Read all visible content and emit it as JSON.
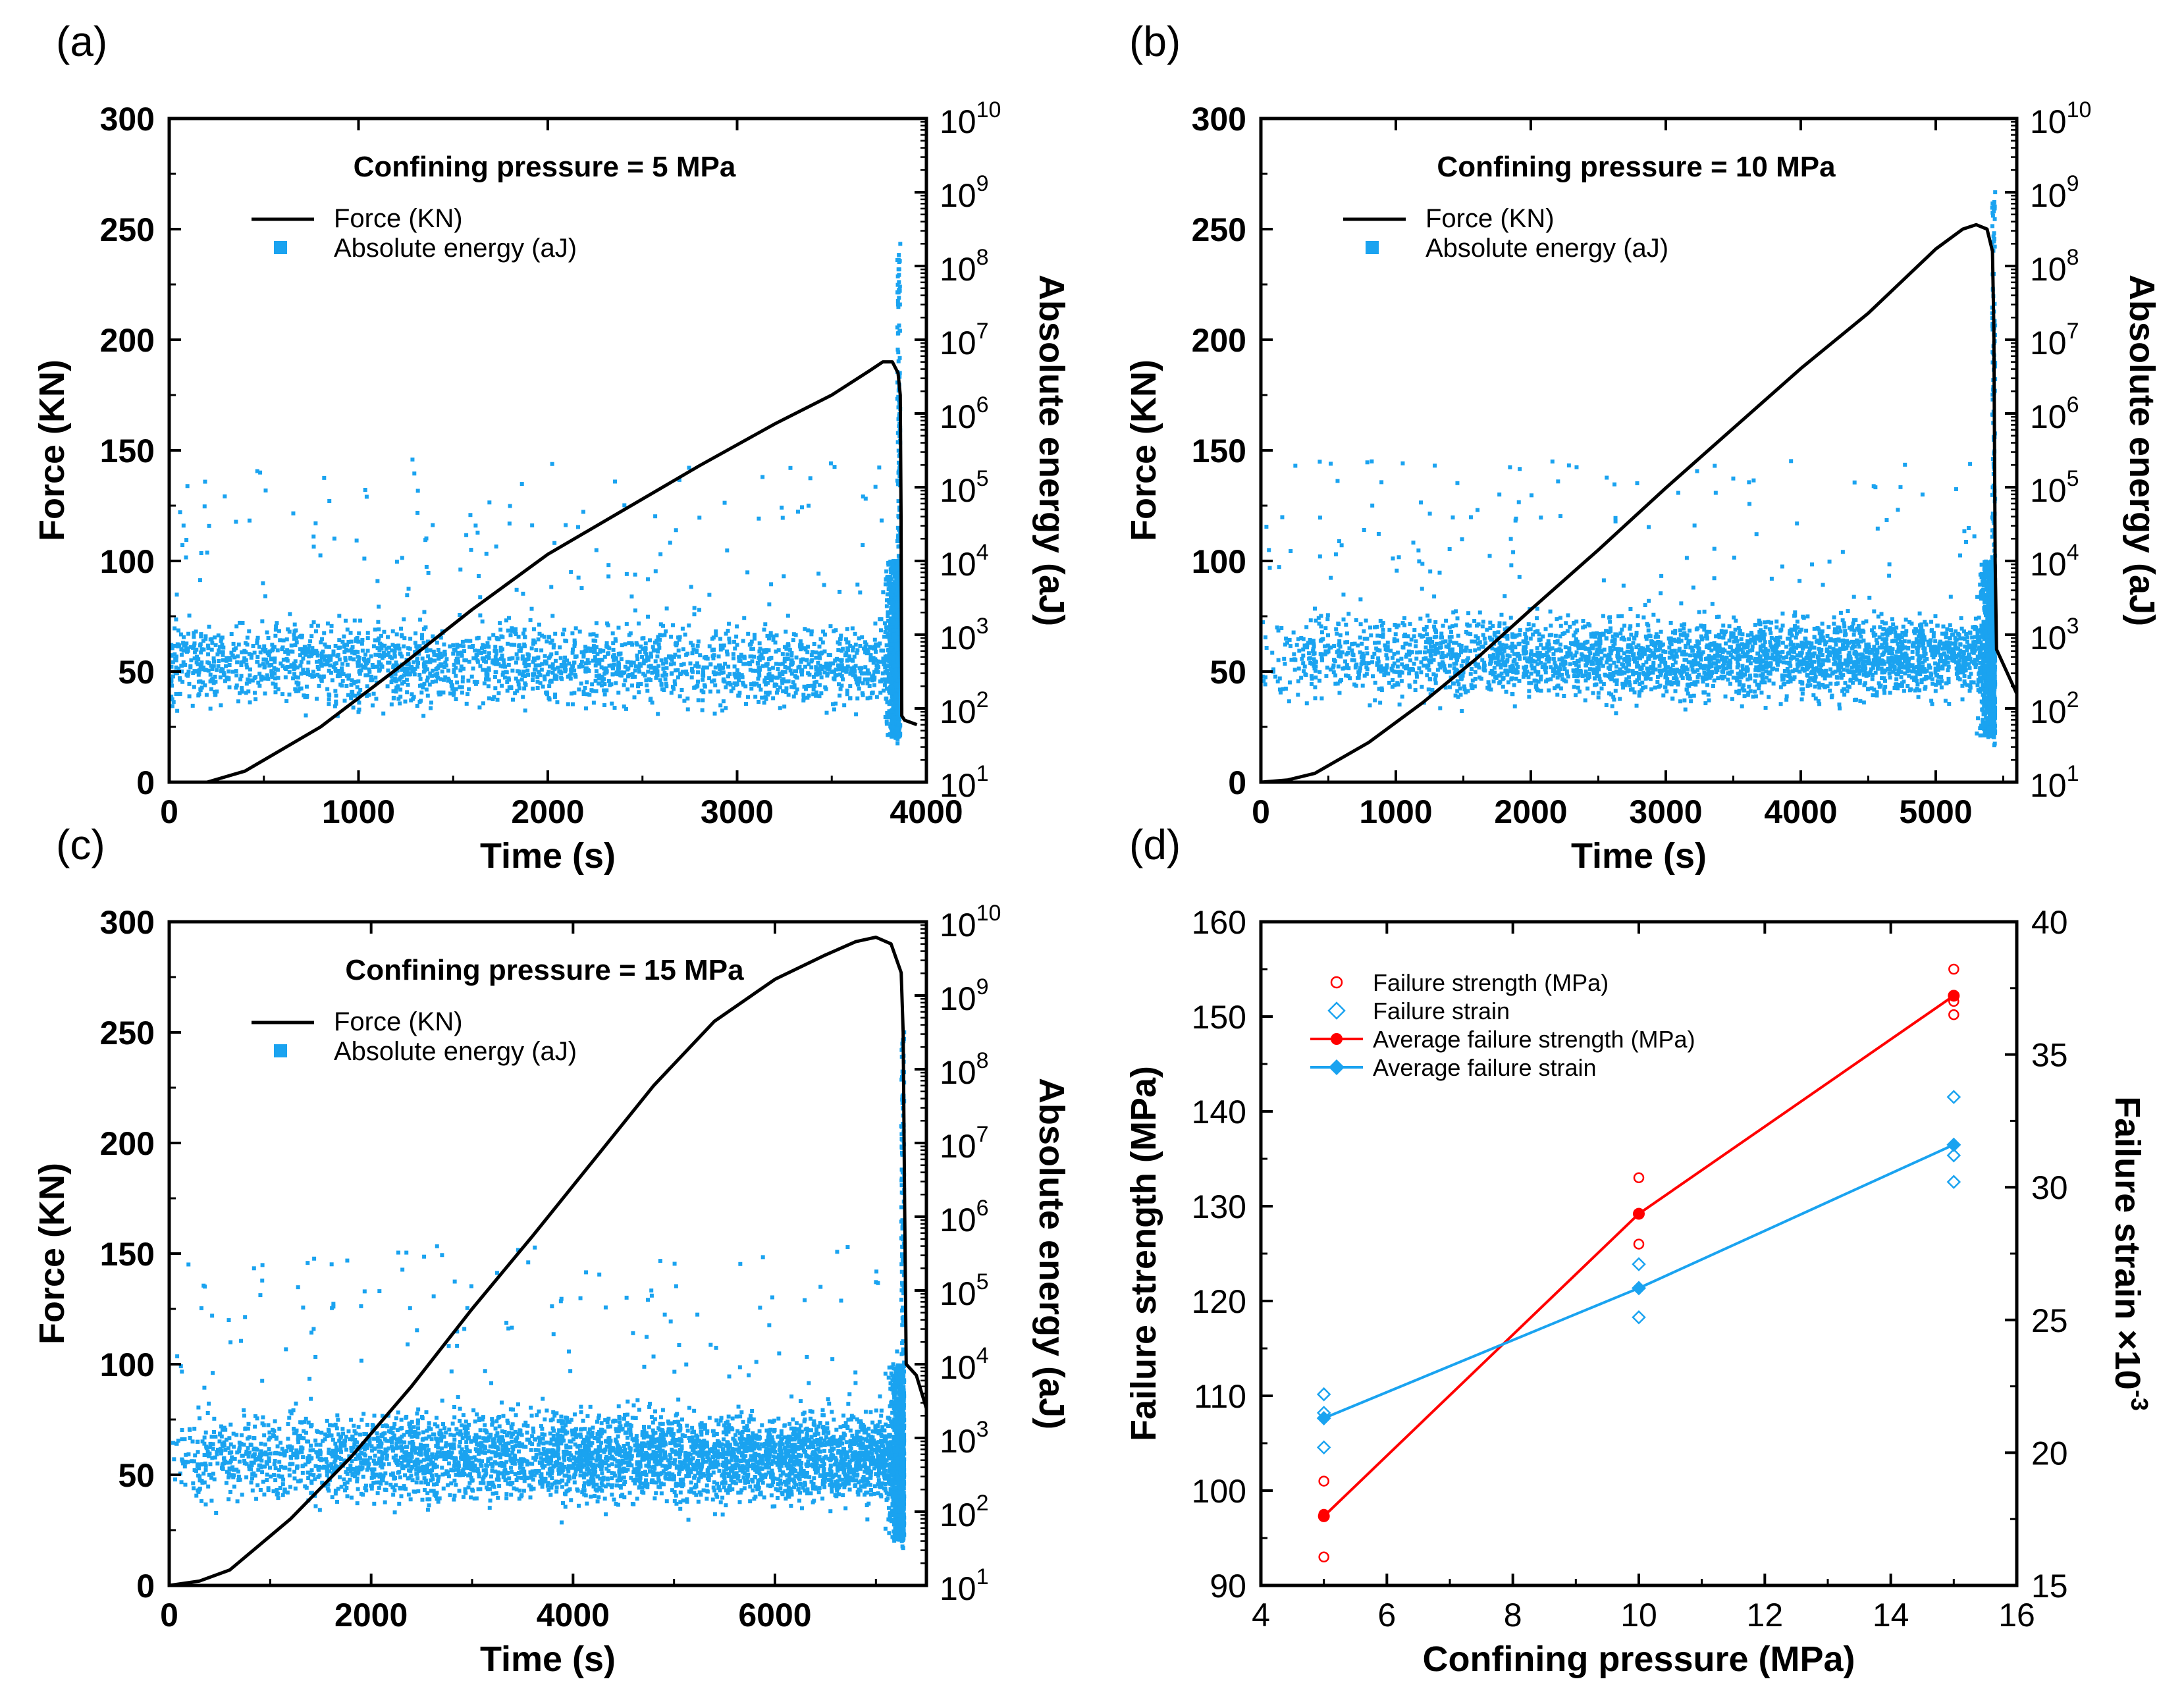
{
  "colors": {
    "force": "#000000",
    "energy": "#1aa3f0",
    "strength": "#ff0000",
    "strain": "#1aa3f0",
    "axis": "#000000"
  },
  "panels": [
    {
      "id": "a",
      "panel_label": "(a)",
      "title": "Confining pressure = 5 MPa",
      "legend": [
        "Force (KN)",
        "Absolute energy (aJ)"
      ],
      "xlabel": "Time (s)",
      "ylabel_left": "Force (KN)",
      "ylabel_right": "Absolute energy (aJ)"
    },
    {
      "id": "b",
      "panel_label": "(b)",
      "title": "Confining pressure = 10 MPa",
      "legend": [
        "Force (KN)",
        "Absolute energy (aJ)"
      ],
      "xlabel": "Time (s)",
      "ylabel_left": "Force (KN)",
      "ylabel_right": "Absolute energy (aJ)"
    },
    {
      "id": "c",
      "panel_label": "(c)",
      "title": "Confining pressure = 15 MPa",
      "legend": [
        "Force (KN)",
        "Absolute energy (aJ)"
      ],
      "xlabel": "Time (s)",
      "ylabel_left": "Force (KN)",
      "ylabel_right": "Absolute energy (aJ)"
    },
    {
      "id": "d",
      "panel_label": "(d)",
      "legend": [
        "Failure strength (MPa)",
        "Failure strain",
        "Average failure strength (MPa)",
        "Average failure strain"
      ],
      "xlabel": "Confining pressure (MPa)",
      "ylabel_left": "Failure strength (MPa)",
      "ylabel_right": "Failure strain ×10",
      "ylabel_right_exp": "-3"
    }
  ],
  "chart_data": [
    {
      "panel": "a",
      "type": "line+scatter",
      "title": "Confining pressure = 5 MPa",
      "xlabel": "Time (s)",
      "ylabel": "Force (KN)",
      "y2label": "Absolute energy (aJ)",
      "xlim": [
        0,
        4000
      ],
      "xticks": [
        0,
        1000,
        2000,
        3000,
        4000
      ],
      "ylim": [
        0,
        300
      ],
      "yticks": [
        0,
        50,
        100,
        150,
        200,
        250,
        300
      ],
      "y2scale": "log",
      "y2lim_exp": [
        1,
        10
      ],
      "y2ticks_exp": [
        1,
        2,
        3,
        4,
        5,
        6,
        7,
        8,
        9,
        10
      ],
      "force": {
        "name": "Force (KN)",
        "x": [
          0,
          200,
          400,
          800,
          1200,
          1600,
          2000,
          2400,
          2800,
          3200,
          3500,
          3700,
          3770,
          3820,
          3850,
          3862,
          3866,
          3870,
          3885,
          3950
        ],
        "y": [
          0,
          0,
          5,
          25,
          51,
          78,
          103,
          123,
          143,
          162,
          175,
          186,
          190,
          190,
          185,
          175,
          120,
          30,
          28,
          26
        ]
      },
      "energy": {
        "name": "Absolute energy (aJ)",
        "band_log": [
          1.8,
          3.4
        ],
        "scatter_max_log": 5.4,
        "spike_time": 3862,
        "spike_max_log": 8.3
      }
    },
    {
      "panel": "b",
      "type": "line+scatter",
      "title": "Confining pressure = 10 MPa",
      "xlabel": "Time (s)",
      "ylabel": "Force (KN)",
      "y2label": "Absolute energy (aJ)",
      "xlim": [
        0,
        5600
      ],
      "xticks": [
        0,
        1000,
        2000,
        3000,
        4000,
        5000
      ],
      "ylim": [
        0,
        300
      ],
      "yticks": [
        0,
        50,
        100,
        150,
        200,
        250,
        300
      ],
      "y2scale": "log",
      "y2lim_exp": [
        1,
        10
      ],
      "y2ticks_exp": [
        1,
        2,
        3,
        4,
        5,
        6,
        7,
        8,
        9,
        10
      ],
      "force": {
        "name": "Force (KN)",
        "x": [
          0,
          200,
          400,
          800,
          1200,
          1600,
          2000,
          2500,
          3000,
          3500,
          4000,
          4500,
          5000,
          5200,
          5300,
          5380,
          5420,
          5430,
          5440,
          5450,
          5600
        ],
        "y": [
          0,
          1,
          4,
          18,
          36,
          56,
          78,
          105,
          133,
          160,
          187,
          212,
          241,
          250,
          252,
          250,
          240,
          205,
          100,
          60,
          40
        ]
      },
      "energy": {
        "name": "Absolute energy (aJ)",
        "band_log": [
          1.9,
          3.5
        ],
        "scatter_max_log": 5.4,
        "spike_time": 5440,
        "spike_max_log": 9.0
      }
    },
    {
      "panel": "c",
      "type": "line+scatter",
      "title": "Confining pressure = 15 MPa",
      "xlabel": "Time (s)",
      "ylabel": "Force (KN)",
      "y2label": "Absolute energy (aJ)",
      "xlim": [
        0,
        7500
      ],
      "xticks": [
        0,
        2000,
        4000,
        6000
      ],
      "ylim": [
        0,
        300
      ],
      "yticks": [
        0,
        50,
        100,
        150,
        200,
        250,
        300
      ],
      "y2scale": "log",
      "y2lim_exp": [
        1,
        10
      ],
      "y2ticks_exp": [
        1,
        2,
        3,
        4,
        5,
        6,
        7,
        8,
        9,
        10
      ],
      "force": {
        "name": "Force (KN)",
        "x": [
          0,
          300,
          600,
          1200,
          1800,
          2400,
          3000,
          3600,
          4200,
          4800,
          5400,
          6000,
          6500,
          6800,
          7000,
          7150,
          7250,
          7270,
          7285,
          7300,
          7400,
          7500
        ],
        "y": [
          0,
          2,
          7,
          30,
          58,
          90,
          125,
          158,
          192,
          226,
          255,
          274,
          285,
          291,
          293,
          290,
          277,
          250,
          170,
          100,
          95,
          80
        ]
      },
      "energy": {
        "name": "Absolute energy (aJ)",
        "band_log": [
          1.9,
          3.6
        ],
        "scatter_max_log": 5.6,
        "spike_time": 7280,
        "spike_max_log": 8.5
      }
    },
    {
      "panel": "d",
      "type": "scatter+line",
      "xlabel": "Confining pressure (MPa)",
      "ylabel": "Failure strength (MPa)",
      "y2label": "Failure strain ×10^-3",
      "xlim": [
        4,
        16
      ],
      "xticks": [
        4,
        6,
        8,
        10,
        12,
        14,
        16
      ],
      "ylim": [
        90,
        160
      ],
      "yticks": [
        90,
        100,
        110,
        120,
        130,
        140,
        150,
        160
      ],
      "y2lim": [
        15,
        40
      ],
      "y2ticks": [
        15,
        20,
        25,
        30,
        35,
        40
      ],
      "series": [
        {
          "name": "Failure strength (MPa)",
          "axis": "left",
          "marker": "open-circle",
          "x": [
            5,
            5,
            5,
            10,
            10,
            15,
            15,
            15
          ],
          "y": [
            93,
            97.5,
            101,
            126,
            133,
            150.2,
            151.6,
            155
          ]
        },
        {
          "name": "Failure strain",
          "axis": "right",
          "marker": "open-diamond",
          "x": [
            5,
            5,
            5,
            10,
            10,
            15,
            15,
            15
          ],
          "y": [
            20.2,
            21.5,
            22.2,
            25.1,
            27.1,
            30.2,
            31.2,
            33.4
          ]
        },
        {
          "name": "Average failure strength (MPa)",
          "axis": "left",
          "marker": "filled-circle-line",
          "x": [
            5,
            10,
            15
          ],
          "y": [
            97.3,
            129.2,
            152.2
          ]
        },
        {
          "name": "Average failure strain",
          "axis": "right",
          "marker": "filled-diamond-line",
          "x": [
            5,
            10,
            15
          ],
          "y": [
            21.3,
            26.2,
            31.6
          ]
        }
      ]
    }
  ]
}
